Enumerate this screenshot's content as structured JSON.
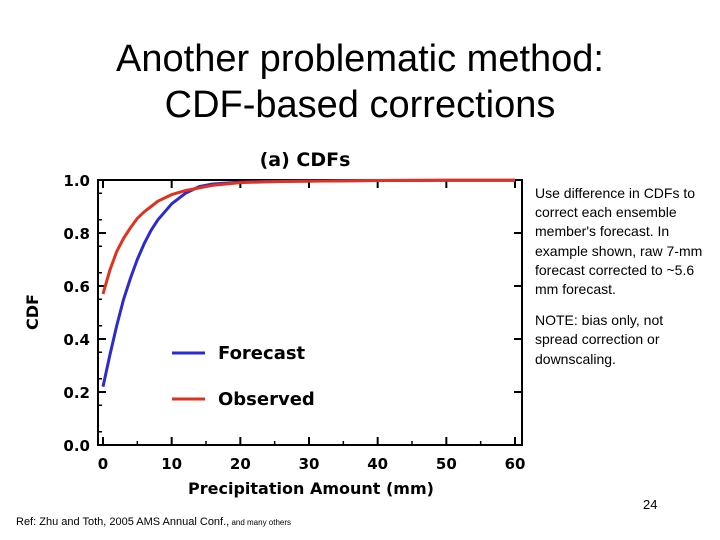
{
  "slide": {
    "title_line1": "Another problematic method:",
    "title_line2": "CDF-based corrections",
    "sidebar_text1": "Use difference in CDFs to correct each ensemble member's forecast. In example shown, raw 7-mm forecast corrected to ~5.6 mm forecast.",
    "sidebar_text2": "NOTE: bias only, not spread correction or downscaling.",
    "page_number": "24",
    "reference_main": "Ref: Zhu and Toth, 2005 AMS Annual Conf.,",
    "reference_small": " and many others"
  },
  "chart_data": {
    "type": "line",
    "title": "(a)  CDFs",
    "xlabel": "Precipitation Amount (mm)",
    "ylabel": "CDF",
    "xlim": [
      0,
      60
    ],
    "ylim": [
      0.0,
      1.0
    ],
    "x_ticks": [
      "0",
      "10",
      "20",
      "30",
      "40",
      "50",
      "60"
    ],
    "y_ticks": [
      "0.0",
      "0.2",
      "0.4",
      "0.6",
      "0.8",
      "1.0"
    ],
    "legend_position": "center-left",
    "series": [
      {
        "name": "Forecast",
        "color": "#2b2bd0",
        "x": [
          0,
          1,
          2,
          3,
          4,
          5,
          6,
          7,
          8,
          10,
          12,
          14,
          16,
          20,
          25,
          30,
          40,
          50,
          60
        ],
        "y": [
          0.22,
          0.34,
          0.45,
          0.55,
          0.63,
          0.7,
          0.76,
          0.81,
          0.85,
          0.91,
          0.95,
          0.975,
          0.985,
          0.992,
          0.995,
          0.996,
          0.998,
          0.999,
          0.999
        ]
      },
      {
        "name": "Observed",
        "color": "#e0321e",
        "x": [
          0,
          1,
          2,
          3,
          4,
          5,
          6,
          7,
          8,
          10,
          12,
          14,
          16,
          20,
          25,
          30,
          40,
          50,
          60
        ],
        "y": [
          0.57,
          0.66,
          0.73,
          0.78,
          0.82,
          0.855,
          0.88,
          0.9,
          0.92,
          0.945,
          0.96,
          0.97,
          0.98,
          0.99,
          0.994,
          0.996,
          0.998,
          0.999,
          0.999
        ]
      }
    ]
  }
}
